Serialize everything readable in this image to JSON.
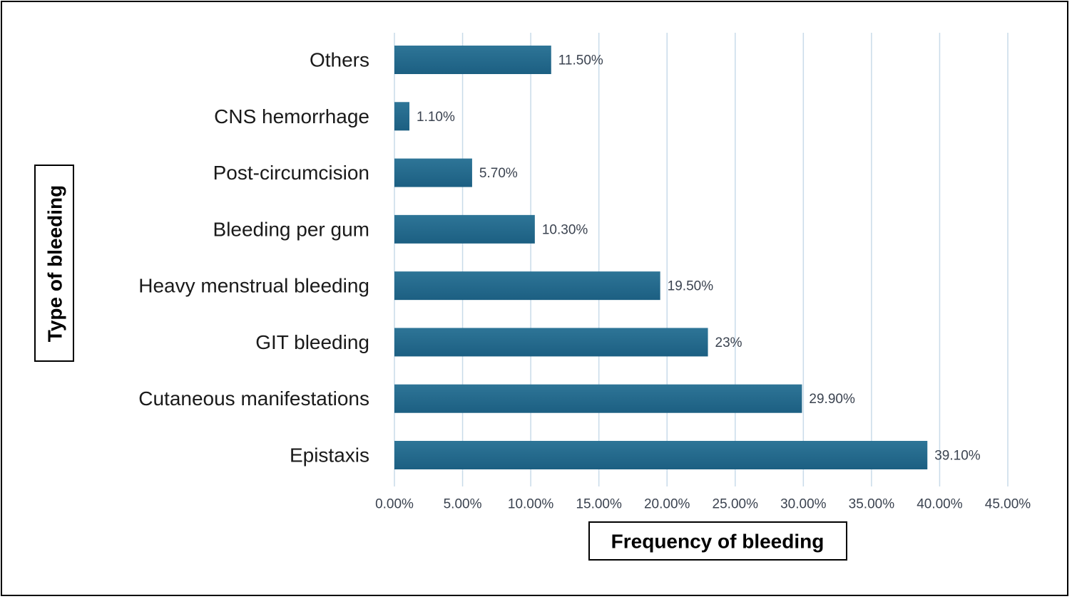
{
  "chart_data": {
    "type": "bar",
    "orientation": "horizontal",
    "categories": [
      "Others",
      "CNS hemorrhage",
      "Post-circumcision",
      "Bleeding per gum",
      "Heavy menstrual bleeding",
      "GIT bleeding",
      "Cutaneous manifestations",
      "Epistaxis"
    ],
    "values": [
      11.5,
      1.1,
      5.7,
      10.3,
      19.5,
      23,
      29.9,
      39.1
    ],
    "data_labels": [
      "11.50%",
      "1.10%",
      "5.70%",
      "10.30%",
      "19.50%",
      "23%",
      "29.90%",
      "39.10%"
    ],
    "xlabel": "Frequency of bleeding",
    "ylabel": "Type of bleeding",
    "xlim": [
      0,
      45
    ],
    "x_ticks": [
      "0.00%",
      "5.00%",
      "10.00%",
      "15.00%",
      "20.00%",
      "25.00%",
      "30.00%",
      "35.00%",
      "40.00%",
      "45.00%"
    ],
    "grid": "vertical",
    "bar_color": "#1c5f82",
    "bar_color_light": "#2e7597",
    "grid_color": "#c9dbe9"
  }
}
